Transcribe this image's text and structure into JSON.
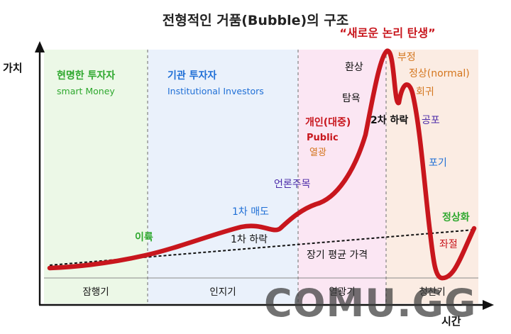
{
  "title": "전형적인 거품(Bubble)의 구조",
  "axes": {
    "y_label": "가치",
    "x_label": "시간"
  },
  "phases": [
    {
      "name": "잠행기",
      "actor": "현명한 투자자",
      "actor_en": "smart Money",
      "color": "#ecf8e7"
    },
    {
      "name": "인지기",
      "actor": "기관 투자자",
      "actor_en": "Institutional Investors",
      "color": "#eaf1fb"
    },
    {
      "name": "열광기",
      "actor": "개인(대중)",
      "actor_en": "Public",
      "color": "#fbe6f3"
    },
    {
      "name": "청산기",
      "actor": "",
      "actor_en": "",
      "color": "#fbece3"
    }
  ],
  "headline": "“새로운 논리 탄생”",
  "trend_label": "장기 평균 가격",
  "annotations": {
    "profit": "이륙",
    "dip1": "1차 하락",
    "sell1": "1차 매도",
    "media": "언론주목",
    "frenzy": "열광",
    "greed": "탐욕",
    "delusion": "환상",
    "dip2": "2차 하락",
    "denial": "부정",
    "normal": "정상(normal)",
    "return": "회귀",
    "fear": "공포",
    "capitulation": "포기",
    "despair": "좌절",
    "normalization": "정상화"
  },
  "colors": {
    "curve": "#c8161d",
    "smart_green": "#2ea82e",
    "inst_blue": "#1f6fd6",
    "public_red": "#c8161d",
    "orange": "#d4761e",
    "purple": "#4b2aa8",
    "green": "#2ea82e",
    "black": "#111111"
  },
  "watermark": "COMU.GG"
}
